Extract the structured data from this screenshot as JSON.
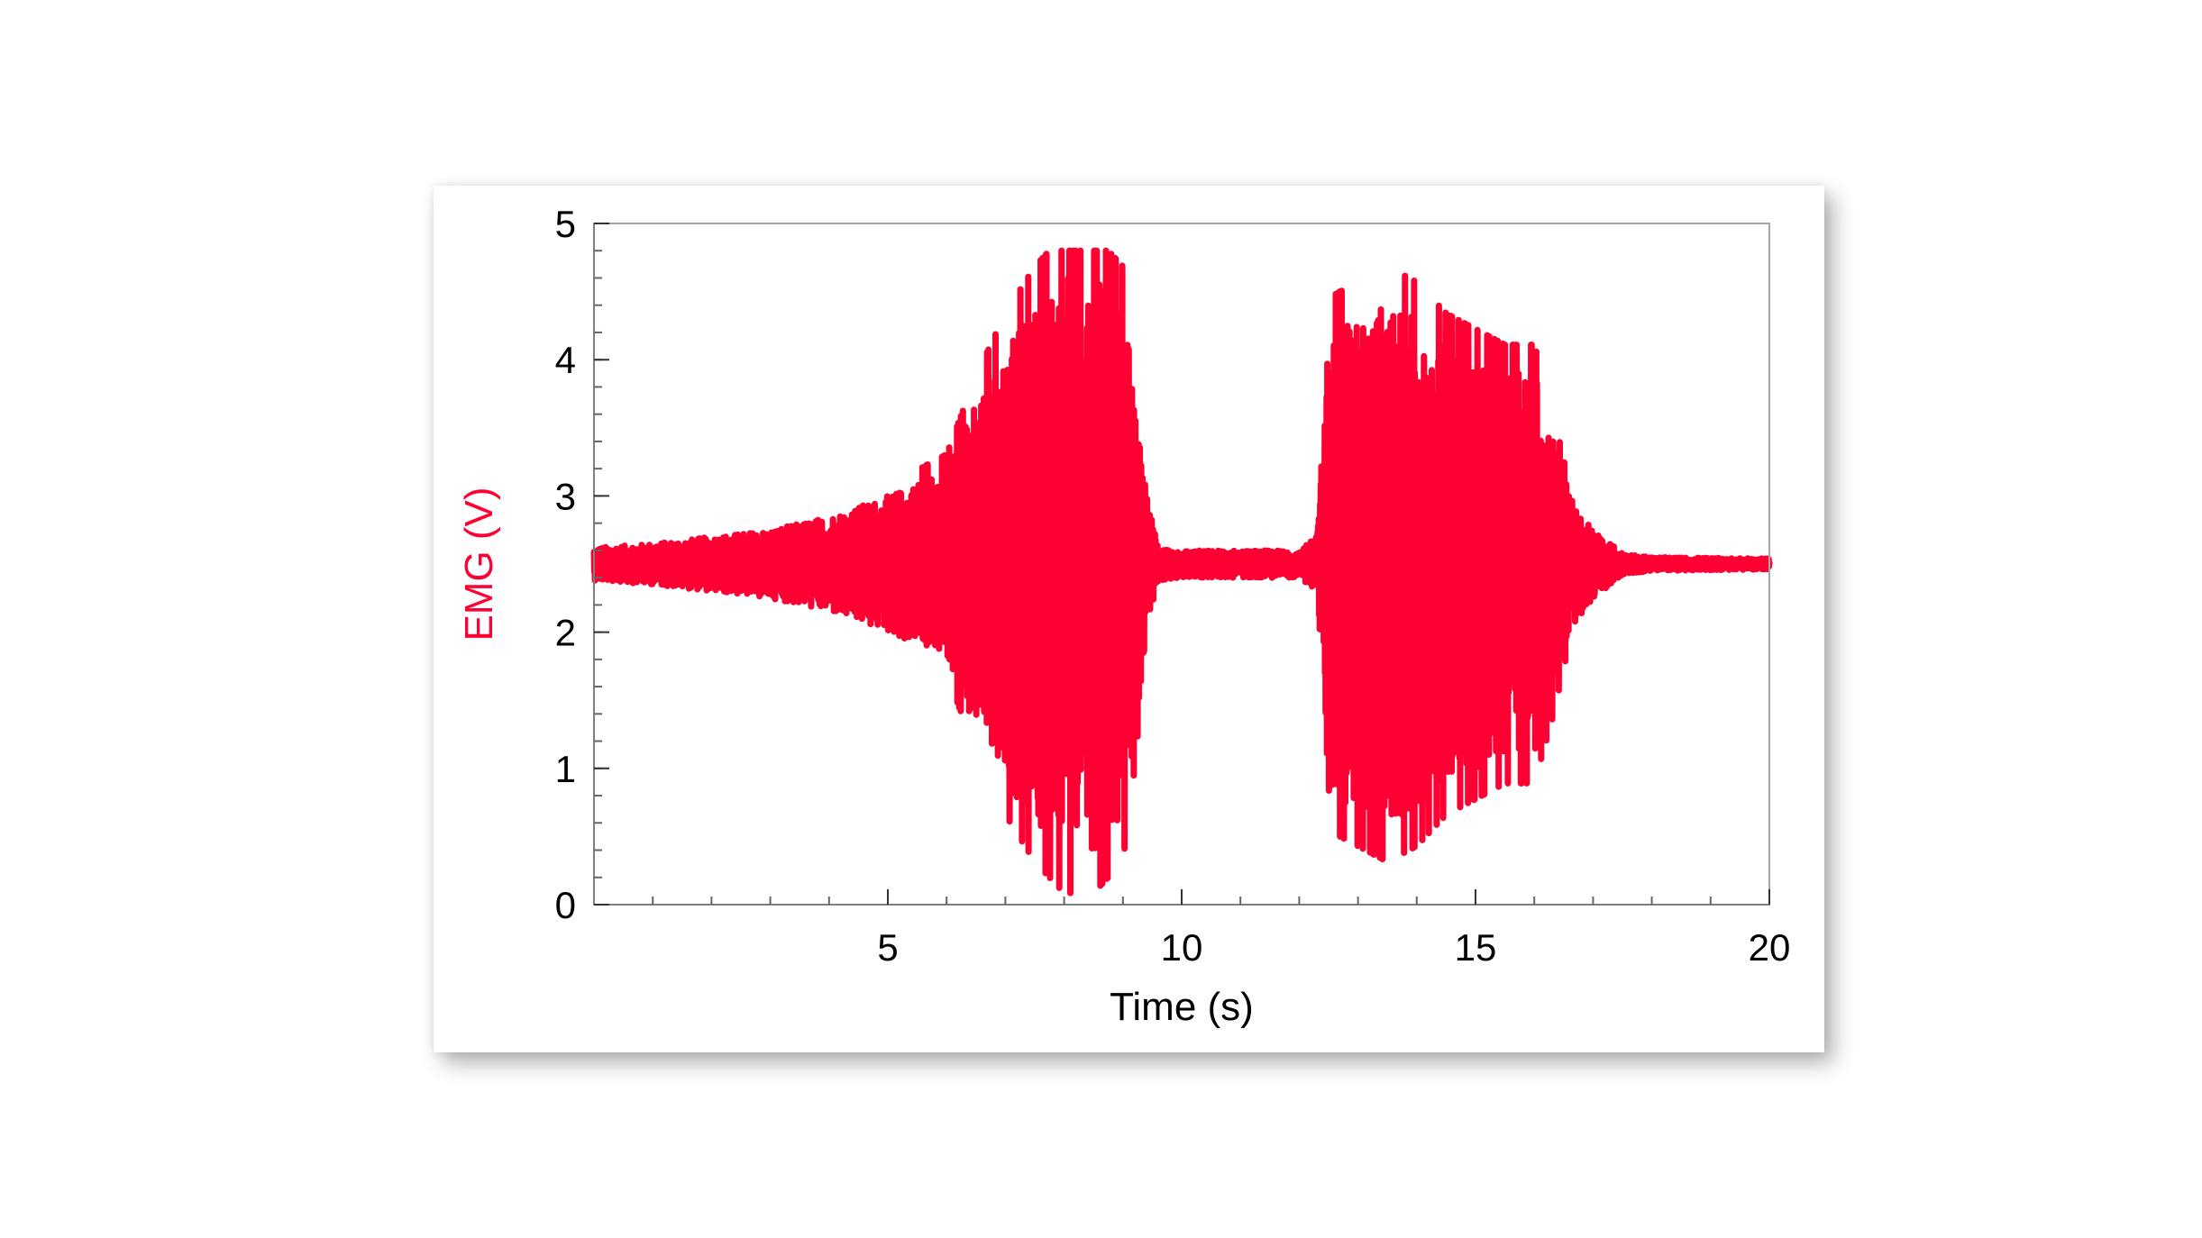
{
  "chart_data": {
    "type": "line",
    "title": "",
    "xlabel": "Time (s)",
    "ylabel": "EMG  (V)",
    "xlim": [
      0,
      20
    ],
    "ylim": [
      0,
      5
    ],
    "x_ticks": [
      5,
      10,
      15,
      20
    ],
    "y_ticks": [
      0,
      1,
      2,
      3,
      4,
      5
    ],
    "x_minor_step": 1,
    "y_minor_step": 0.2,
    "grid": false,
    "legend": "none",
    "series": [
      {
        "color": "#ff0033",
        "baseline": 2.5,
        "description_points": [
          [
            0,
            0.12
          ],
          [
            1,
            0.15
          ],
          [
            2,
            0.2
          ],
          [
            3,
            0.25
          ],
          [
            4,
            0.35
          ],
          [
            5,
            0.5
          ],
          [
            6,
            0.7
          ],
          [
            6.5,
            1.2
          ],
          [
            7,
            1.6
          ],
          [
            7.5,
            1.9
          ],
          [
            8,
            2.1
          ],
          [
            8.5,
            2.1
          ],
          [
            9,
            1.9
          ],
          [
            9.2,
            1.3
          ],
          [
            9.4,
            0.5
          ],
          [
            9.6,
            0.12
          ],
          [
            10,
            0.1
          ],
          [
            11,
            0.1
          ],
          [
            12,
            0.1
          ],
          [
            12.3,
            0.2
          ],
          [
            12.5,
            1.7
          ],
          [
            13,
            1.8
          ],
          [
            13.5,
            1.9
          ],
          [
            14,
            1.8
          ],
          [
            14.5,
            1.6
          ],
          [
            15,
            1.5
          ],
          [
            15.5,
            1.4
          ],
          [
            16,
            1.4
          ],
          [
            16.3,
            1.0
          ],
          [
            16.6,
            0.5
          ],
          [
            17,
            0.25
          ],
          [
            17.5,
            0.08
          ],
          [
            18,
            0.05
          ],
          [
            20,
            0.04
          ]
        ],
        "envelope": [
          [
            0,
            0.12
          ],
          [
            1,
            0.15
          ],
          [
            2,
            0.2
          ],
          [
            3,
            0.25
          ],
          [
            4,
            0.35
          ],
          [
            5,
            0.5
          ],
          [
            6,
            0.7
          ],
          [
            6.5,
            1.2
          ],
          [
            7,
            1.6
          ],
          [
            7.5,
            1.9
          ],
          [
            8,
            2.1
          ],
          [
            8.5,
            2.1
          ],
          [
            9,
            1.9
          ],
          [
            9.2,
            1.3
          ],
          [
            9.4,
            0.5
          ],
          [
            9.6,
            0.12
          ],
          [
            10,
            0.1
          ],
          [
            11,
            0.1
          ],
          [
            12,
            0.1
          ],
          [
            12.3,
            0.2
          ],
          [
            12.5,
            1.7
          ],
          [
            13,
            1.8
          ],
          [
            13.5,
            1.9
          ],
          [
            14,
            1.8
          ],
          [
            14.5,
            1.6
          ],
          [
            15,
            1.5
          ],
          [
            15.5,
            1.4
          ],
          [
            16,
            1.4
          ],
          [
            16.3,
            1.0
          ],
          [
            16.6,
            0.5
          ],
          [
            17,
            0.25
          ],
          [
            17.5,
            0.08
          ],
          [
            18,
            0.05
          ],
          [
            20,
            0.04
          ]
        ],
        "peak_max": 4.8,
        "peak_min": 0.0
      }
    ]
  }
}
